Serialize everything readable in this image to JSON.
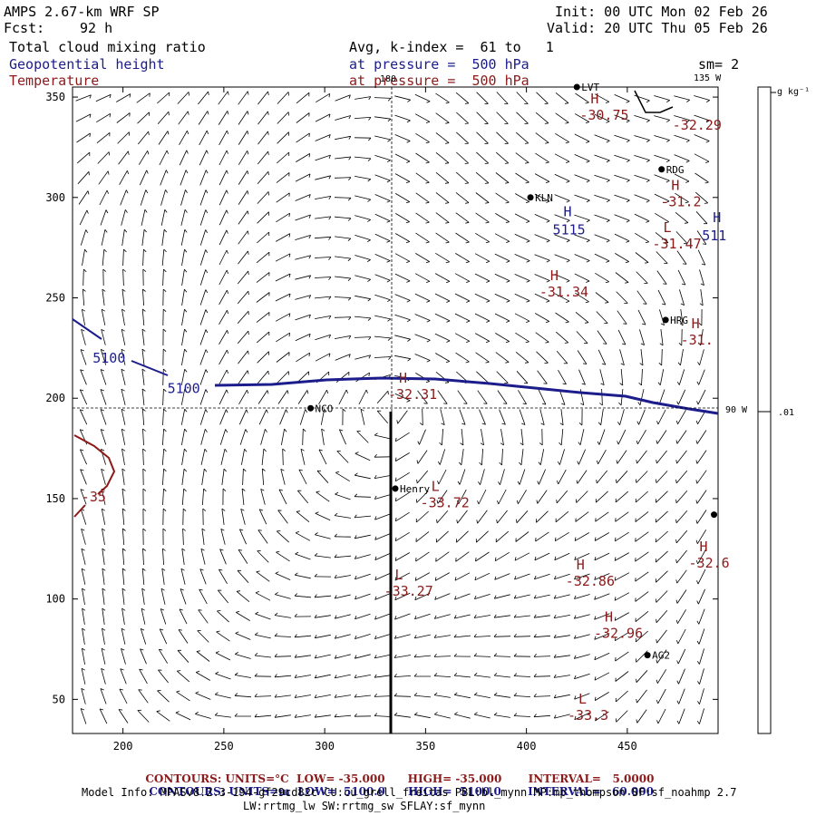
{
  "header": {
    "model": "AMPS 2.67-km WRF SP",
    "init": "Init: 00 UTC Mon 02 Feb 26",
    "fcst_label": "Fcst:",
    "fcst_value": "92 h",
    "valid": "Valid: 20 UTC Thu 05 Feb 26",
    "field1": "Total cloud mixing ratio",
    "field2": "Geopotential height",
    "field3": "Temperature",
    "avg": "Avg, k-index =  61 to   1",
    "pressure1": "at pressure =  500 hPa",
    "pressure2": "at pressure =  500 hPa",
    "sm": "sm= 2"
  },
  "colors": {
    "height_contour": "#1c1c8c",
    "temp_contour": "#8c1a1a",
    "barb": "#000000"
  },
  "map": {
    "x_ticks": [
      200,
      250,
      300,
      350,
      400,
      450
    ],
    "y_ticks": [
      50,
      100,
      150,
      200,
      250,
      300,
      350
    ],
    "x_range": [
      175,
      495
    ],
    "y_range": [
      33,
      355
    ],
    "lon_labels": {
      "top_180": "180",
      "top_135w": "135 W",
      "right_90w": "90 W"
    },
    "stations": [
      {
        "name": "LVT",
        "x": 425,
        "y": 355
      },
      {
        "name": "RDG",
        "x": 467,
        "y": 314
      },
      {
        "name": "KLN",
        "x": 402,
        "y": 300
      },
      {
        "name": "HRG",
        "x": 469,
        "y": 239
      },
      {
        "name": "NCO",
        "x": 293,
        "y": 195
      },
      {
        "name": "Henry",
        "x": 335,
        "y": 155
      },
      {
        "name": "AG2",
        "x": 460,
        "y": 72
      },
      {
        "name": "",
        "x": 493,
        "y": 142
      }
    ],
    "temp_labels": [
      {
        "type": "H",
        "value": "-30.75",
        "x": 430,
        "y": 345
      },
      {
        "type": "",
        "value": "-32.29",
        "x": 476,
        "y": 340
      },
      {
        "type": "H",
        "value": "-31.2",
        "x": 470,
        "y": 302
      },
      {
        "type": "L",
        "value": "-31.47",
        "x": 466,
        "y": 281
      },
      {
        "type": "H",
        "value": "-31.34",
        "x": 410,
        "y": 257
      },
      {
        "type": "H",
        "value": "-31.",
        "x": 480,
        "y": 233
      },
      {
        "type": "H",
        "value": "-32.31",
        "x": 335,
        "y": 206
      },
      {
        "type": "L",
        "value": "-33.72",
        "x": 351,
        "y": 152
      },
      {
        "type": "H",
        "value": "-32.6",
        "x": 484,
        "y": 122
      },
      {
        "type": "H",
        "value": "-32.86",
        "x": 423,
        "y": 113
      },
      {
        "type": "L",
        "value": "-33.27",
        "x": 333,
        "y": 108
      },
      {
        "type": "H",
        "value": "-32.96",
        "x": 437,
        "y": 87
      },
      {
        "type": "L",
        "value": "-33.3",
        "x": 424,
        "y": 46
      },
      {
        "type": "",
        "value": "-35",
        "x": 183,
        "y": 155
      }
    ],
    "height_labels": [
      {
        "type": "H",
        "value": "5115",
        "x": 413,
        "y": 288
      },
      {
        "type": "H",
        "value": "511",
        "x": 487,
        "y": 285
      },
      {
        "type": "",
        "value": "5100",
        "x": 185,
        "y": 224
      },
      {
        "type": "",
        "value": "5100",
        "x": 222,
        "y": 209
      }
    ],
    "colorbar": {
      "unit": "g kg⁻¹",
      "value": ".01"
    }
  },
  "footer": {
    "line1_label": "CONTOURS:",
    "line1_units": "UNITS=°C",
    "line1_low": "LOW= -35.000",
    "line1_high": "HIGH= -35.000",
    "line1_interval": "INTERVAL=   5.0000",
    "line2_label": "CONTOURS:",
    "line2_units": "UNITS=m",
    "line2_low": "LOW=  5100.0",
    "line2_high": "HIGH=  5100.0",
    "line2_interval": "INTERVAL=   60.000",
    "model_info": "Model Info: MPASv8.2.3-194-gf29cd82c CU:cu_grell_freitas PBL:bl_mynn MP:mp_thompson SF:sf_noahmp 2.7",
    "model_info2": "LW:rrtmg_lw SW:rrtmg_sw SFLAY:sf_mynn"
  }
}
